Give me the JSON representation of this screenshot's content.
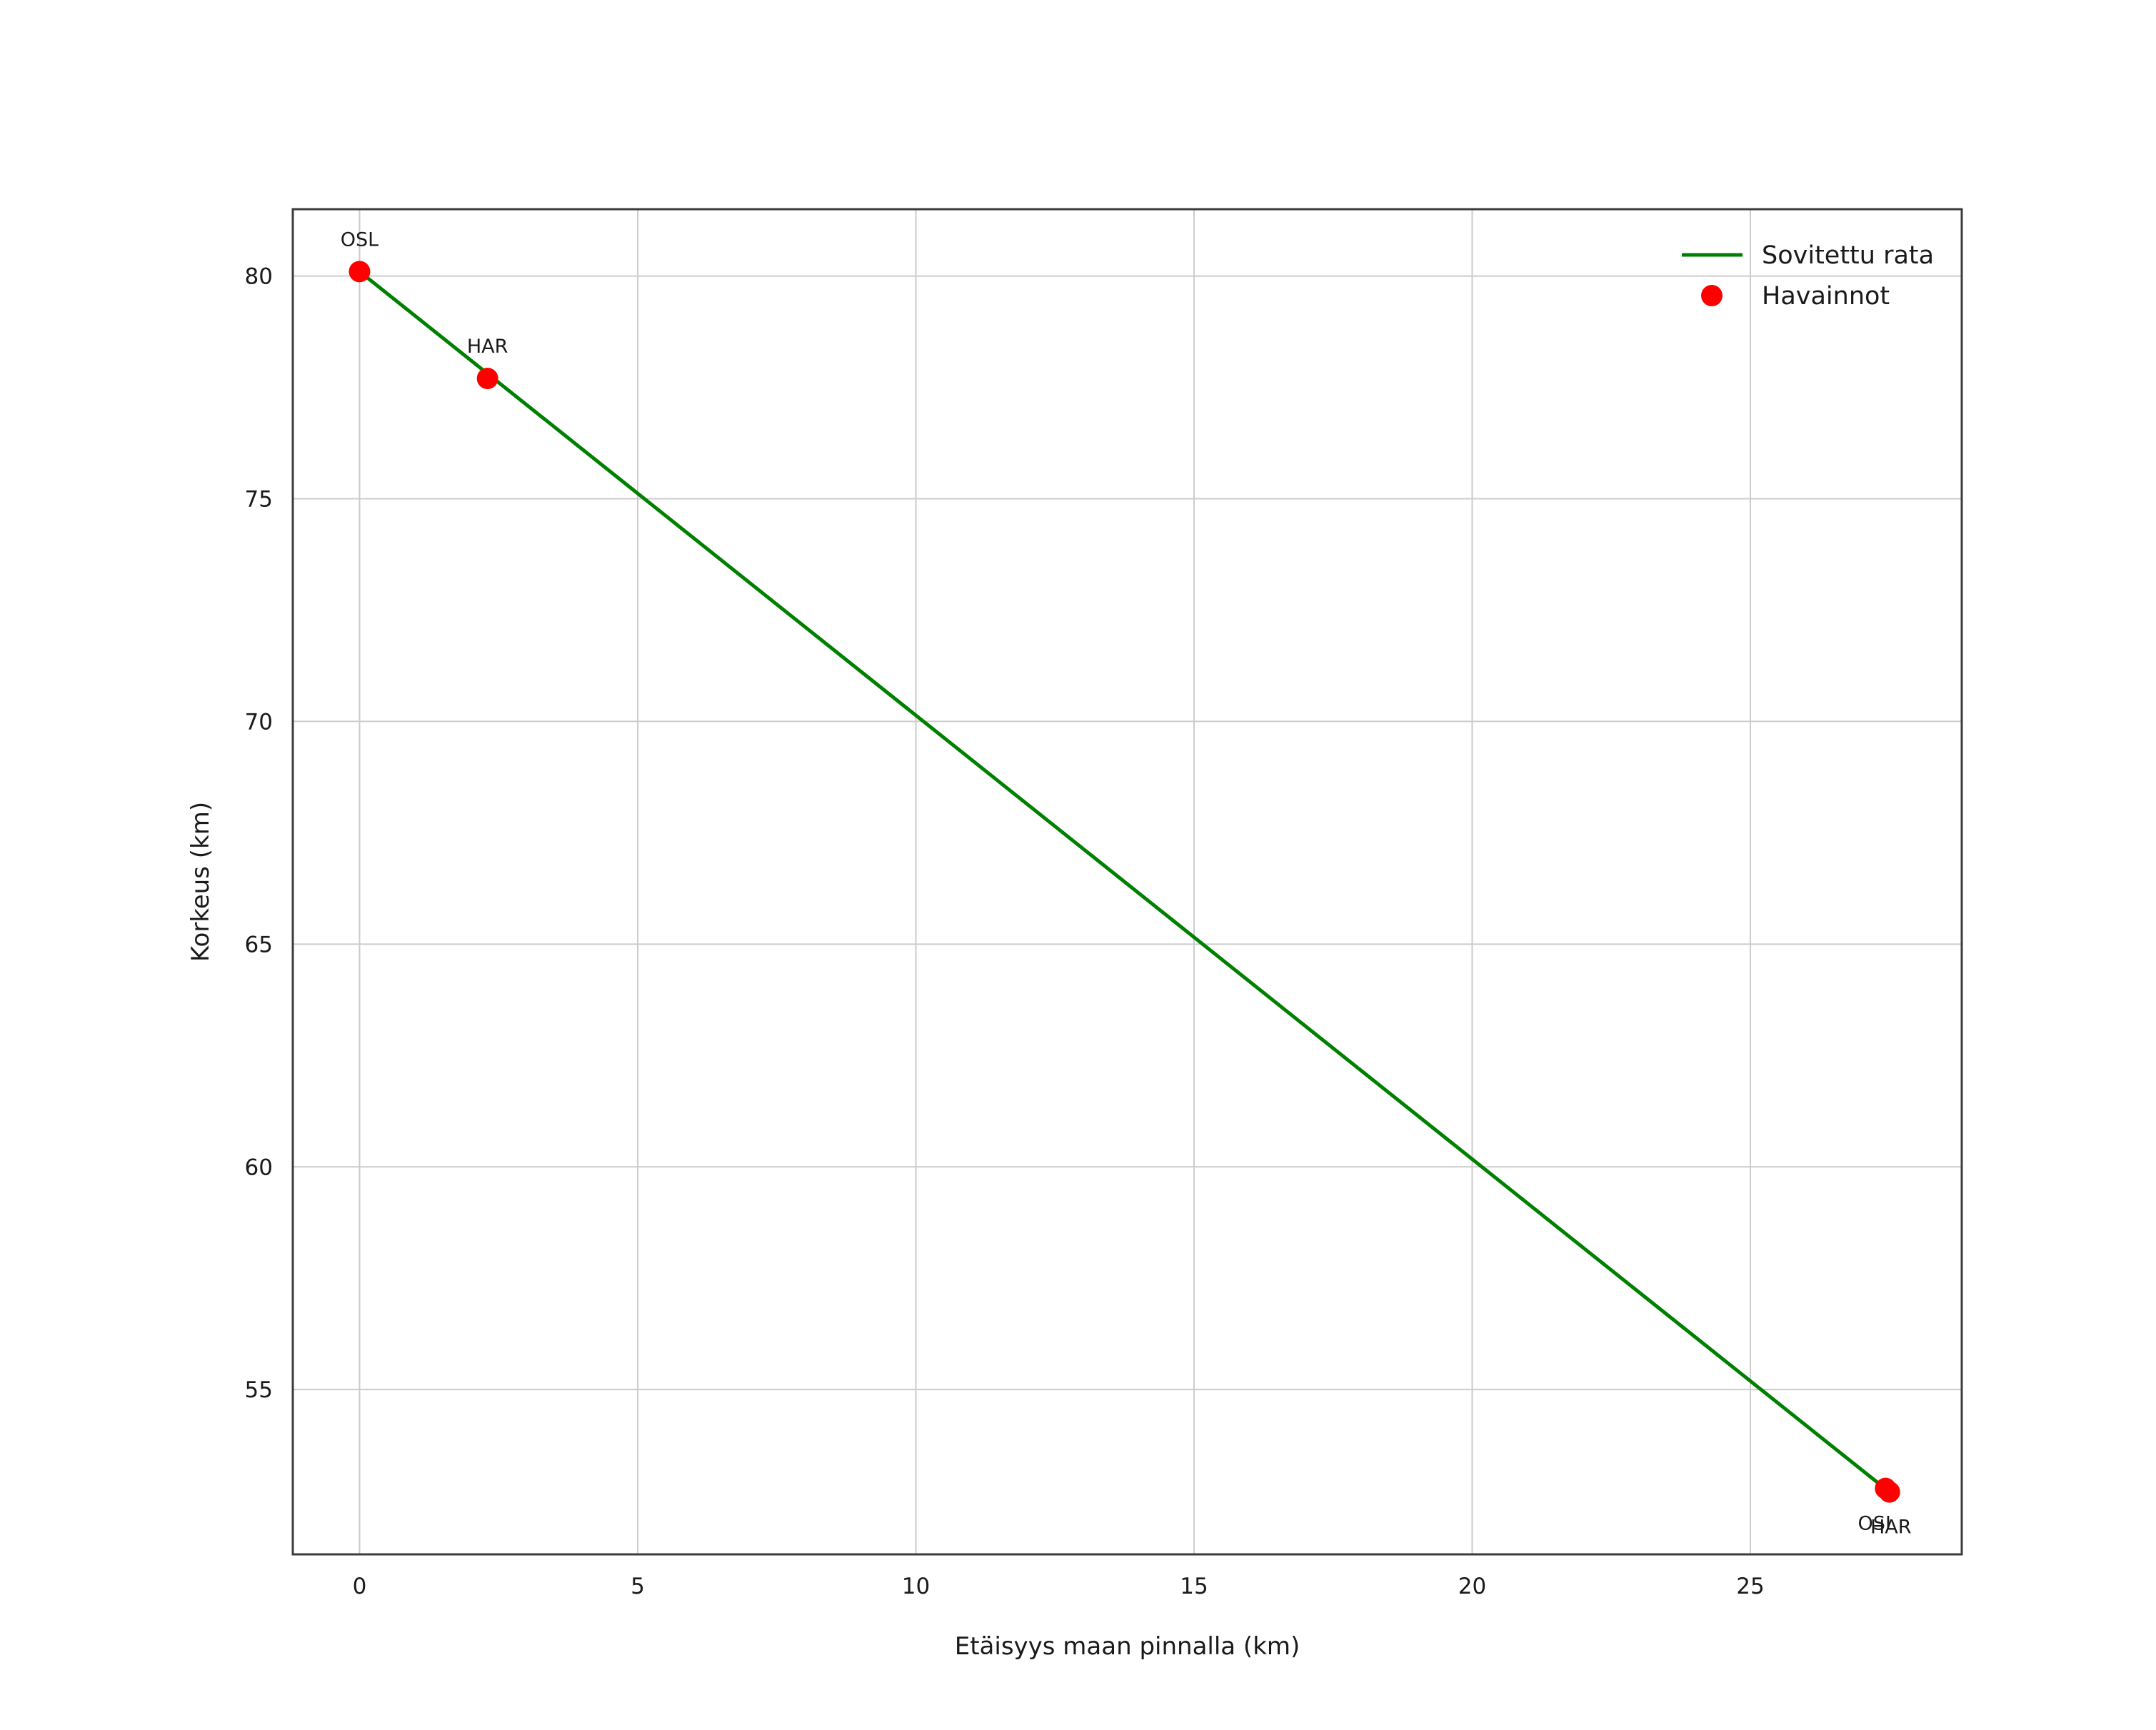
{
  "figure": {
    "background": "#ffffff",
    "plot_background": "#ffffff",
    "border_color": "#3b3b3b",
    "grid_color": "#cccccc",
    "text_color": "#1a1a1a"
  },
  "chart_data": {
    "type": "line+scatter",
    "title": "",
    "xlabel": "Etäisyys maan pinnalla (km)",
    "ylabel": "Korkeus (km)",
    "xlim": [
      -1.2,
      28.8
    ],
    "ylim": [
      51.3,
      81.5
    ],
    "xticks": [
      0,
      5,
      10,
      15,
      20,
      25
    ],
    "yticks": [
      55,
      60,
      65,
      70,
      75,
      80
    ],
    "grid": true,
    "legend": {
      "position": "upper right",
      "entries": [
        {
          "label": "Sovitettu rata",
          "type": "line",
          "color": "#008000"
        },
        {
          "label": "Havainnot",
          "type": "point",
          "color": "#ff0000"
        }
      ]
    },
    "series": [
      {
        "name": "Sovitettu rata",
        "type": "line",
        "color": "#008000",
        "stroke_width": 5,
        "points": [
          [
            0,
            80.1
          ],
          [
            27.46,
            52.74
          ]
        ]
      },
      {
        "name": "Havainnot",
        "type": "scatter",
        "color": "#ff0000",
        "marker_radius": 15,
        "points": [
          {
            "x": 0.0,
            "y": 80.1,
            "label": "OSL",
            "label_offset": [
              0,
              -36
            ]
          },
          {
            "x": 2.3,
            "y": 77.7,
            "label": "HAR",
            "label_offset": [
              0,
              -36
            ]
          },
          {
            "x": 27.43,
            "y": 52.78,
            "label": "OSL",
            "label_offset": [
              -12,
              58
            ]
          },
          {
            "x": 27.5,
            "y": 52.7,
            "label": "HAR",
            "label_offset": [
              2,
              58
            ]
          }
        ]
      }
    ]
  }
}
